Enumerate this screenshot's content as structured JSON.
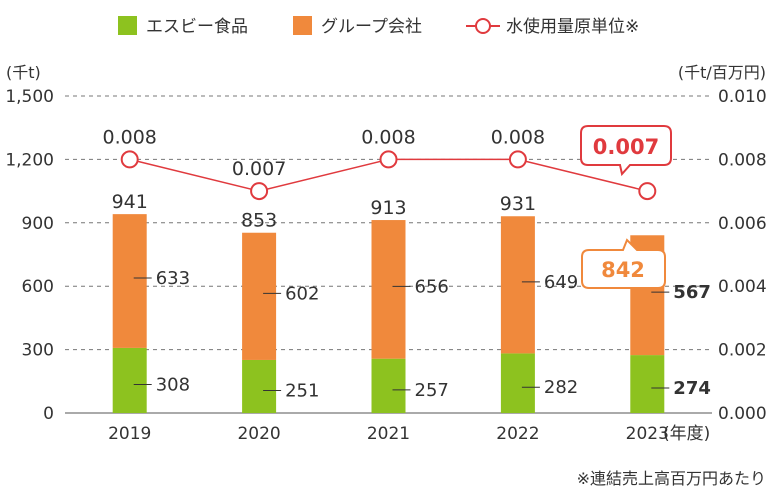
{
  "chart_data": {
    "type": "bar",
    "categories": [
      "2019",
      "2020",
      "2021",
      "2022",
      "2023"
    ],
    "x_unit_label": "(年度)",
    "y_left_label": "(千t)",
    "y_right_label": "(千t/百万円)",
    "y_left_ticks": [
      "1,500",
      "1,200",
      "900",
      "600",
      "300",
      "0"
    ],
    "y_right_ticks": [
      "0.010",
      "0.008",
      "0.006",
      "0.004",
      "0.002",
      "0.000"
    ],
    "ylim_left": [
      0,
      1500
    ],
    "ylim_right": [
      0,
      0.01
    ],
    "grid": true,
    "legend_position": "top",
    "series": [
      {
        "name": "エスビー食品",
        "type": "bar",
        "color": "#8dc21f",
        "values": [
          308,
          251,
          257,
          282,
          274
        ]
      },
      {
        "name": "グループ会社",
        "type": "bar",
        "color": "#f0893c",
        "values": [
          633,
          602,
          656,
          649,
          567
        ]
      },
      {
        "name": "水使用量原単位※",
        "type": "line",
        "axis": "right",
        "color": "#e03a3e",
        "values": [
          0.008,
          0.007,
          0.008,
          0.008,
          0.007
        ]
      }
    ],
    "totals": [
      941,
      853,
      913,
      931,
      842
    ],
    "bar_value_labels": [
      [
        "308",
        "633"
      ],
      [
        "251",
        "602"
      ],
      [
        "257",
        "656"
      ],
      [
        "282",
        "649"
      ],
      [
        "274",
        "567"
      ]
    ],
    "total_labels": [
      "941",
      "853",
      "913",
      "931",
      "842"
    ],
    "line_value_labels": [
      "0.008",
      "0.007",
      "0.008",
      "0.008",
      "0.007"
    ],
    "highlight": {
      "category": "2023",
      "total_label": "842",
      "ratio_label": "0.007"
    },
    "footnote": "※連結売上高百万円あたり"
  }
}
